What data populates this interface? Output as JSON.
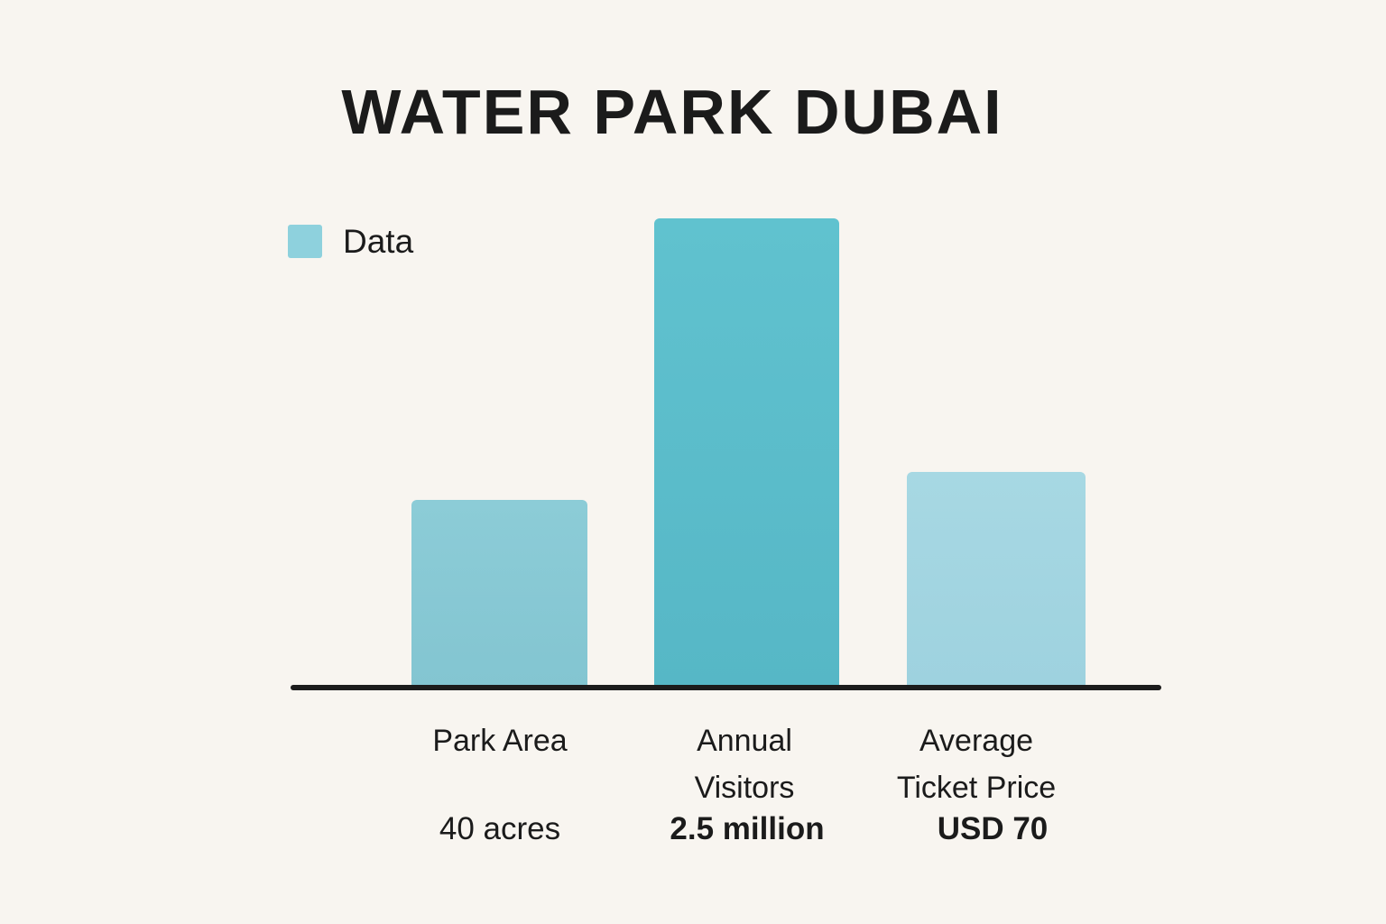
{
  "chart_data": {
    "type": "bar",
    "title": "WATER PARK DUBAI",
    "legend": {
      "label": "Data",
      "swatch_color": "#8ed1dd",
      "position": "top-left"
    },
    "background_color": "#f8f5f0",
    "axis_color": "#1c1c1c",
    "grid": false,
    "y_axis_shown": false,
    "categories": [
      "Park Area",
      "Annual\nVisitors",
      "Average\nTicket Price"
    ],
    "value_labels": [
      "40 acres",
      "2.5 million",
      "USD 70"
    ],
    "values": [
      40,
      2.5,
      70
    ],
    "bar_relative_heights": [
      0.4,
      1.0,
      0.46
    ],
    "bar_colors": [
      "#8cccd7",
      "#60c2cf",
      "#a7d8e3"
    ],
    "bar_colors_bottom": [
      "#83c5d1",
      "#56b7c6",
      "#9ed2df"
    ],
    "value_label_bold": [
      false,
      true,
      true
    ]
  }
}
